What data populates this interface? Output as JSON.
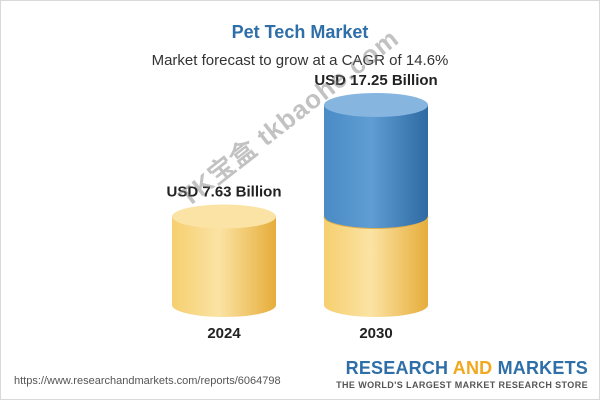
{
  "title": "Pet Tech Market",
  "subtitle": "Market forecast to grow at a CAGR of 14.6%",
  "chart_data": {
    "type": "bar",
    "categories": [
      "2024",
      "2030"
    ],
    "values": [
      7.63,
      17.25
    ],
    "value_labels": [
      "USD 7.63 Billion",
      "USD 17.25 Billion"
    ],
    "title": "Pet Tech Market",
    "subtitle": "Market forecast to grow at a CAGR of 14.6%",
    "xlabel": "",
    "ylabel": "",
    "grid": false,
    "base_color": "#f5c860",
    "growth_color": "#3d7fbd"
  },
  "footer": {
    "url": "https://www.researchandmarkets.com/reports/6064798",
    "brand_part1": "RESEARCH ",
    "brand_part2": "AND",
    "brand_part3": " MARKETS",
    "tagline": "THE WORLD'S LARGEST MARKET RESEARCH STORE"
  },
  "watermark": "TK宝盒 tkbaohe.com"
}
